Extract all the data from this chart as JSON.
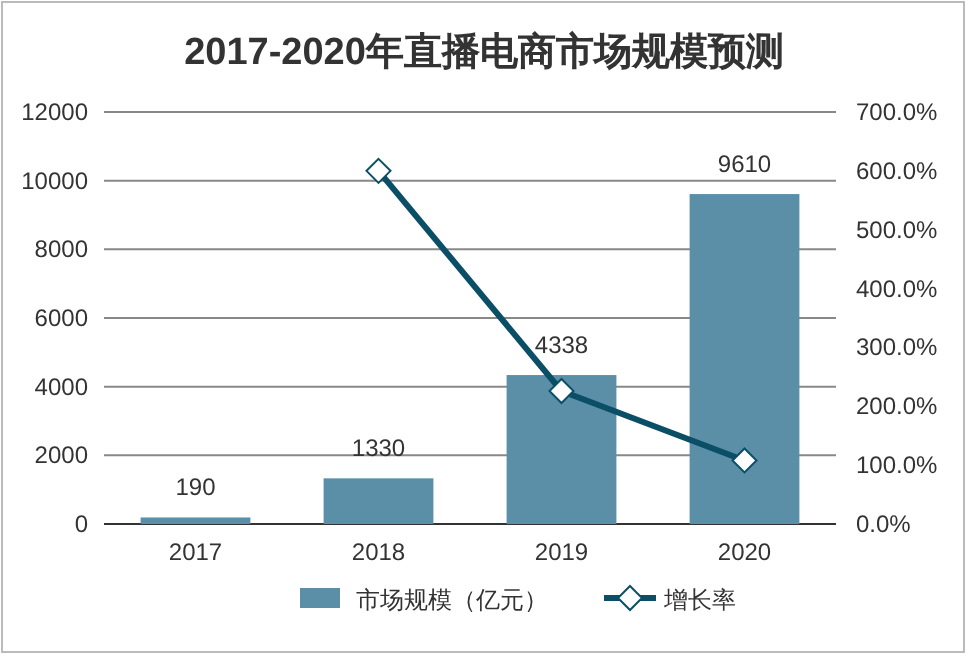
{
  "chart_data": {
    "type": "bar",
    "title": "2017-2020年直播电商市场规模预测",
    "categories": [
      "2017",
      "2018",
      "2019",
      "2020"
    ],
    "series": [
      {
        "name": "市场规模（亿元）",
        "color": "#5b8fa8",
        "values": [
          190,
          1330,
          4338,
          9610
        ],
        "value_labels": [
          "190",
          "1330",
          "4338",
          "9610"
        ]
      },
      {
        "name": "增长率",
        "type": "line",
        "axis": "y2",
        "color": "#0b4f66",
        "marker": "diamond",
        "values": [
          null,
          600,
          226,
          108
        ]
      }
    ],
    "ylim": [
      0,
      12000
    ],
    "yticks": [
      0,
      2000,
      4000,
      6000,
      8000,
      10000,
      12000
    ],
    "y2lim": [
      0,
      700
    ],
    "y2ticks": [
      {
        "value": 0,
        "label": "0.0%"
      },
      {
        "value": 100,
        "label": "100.0%"
      },
      {
        "value": 200,
        "label": "200.0%"
      },
      {
        "value": 300,
        "label": "300.0%"
      },
      {
        "value": 400,
        "label": "400.0%"
      },
      {
        "value": 500,
        "label": "500.0%"
      },
      {
        "value": 600,
        "label": "600.0%"
      },
      {
        "value": 700,
        "label": "700.0%"
      }
    ],
    "grid": "y",
    "legend": "bottom"
  }
}
